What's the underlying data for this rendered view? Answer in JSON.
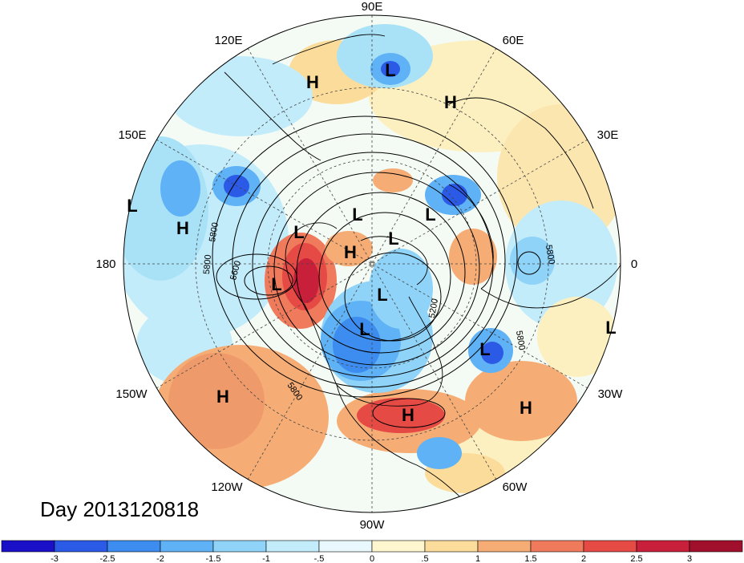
{
  "title": "Day 2013120818",
  "longitude_labels": [
    "90E",
    "60E",
    "30E",
    "0",
    "30W",
    "60W",
    "90W",
    "120W",
    "150W",
    "180",
    "150E",
    "120E"
  ],
  "systems": [
    {
      "type": "H",
      "id": "h1"
    },
    {
      "type": "L",
      "id": "l1"
    },
    {
      "type": "H",
      "id": "h2"
    },
    {
      "type": "L",
      "id": "l2"
    },
    {
      "type": "H",
      "id": "h3"
    },
    {
      "type": "L",
      "id": "l3"
    },
    {
      "type": "L",
      "id": "l4"
    },
    {
      "type": "L",
      "id": "l5"
    },
    {
      "type": "H",
      "id": "h4"
    },
    {
      "type": "L",
      "id": "l6"
    },
    {
      "type": "L",
      "id": "l7"
    },
    {
      "type": "L",
      "id": "l8"
    },
    {
      "type": "L",
      "id": "l9"
    },
    {
      "type": "L",
      "id": "l10"
    },
    {
      "type": "L",
      "id": "l11"
    },
    {
      "type": "H",
      "id": "h5"
    },
    {
      "type": "H",
      "id": "h6"
    },
    {
      "type": "H",
      "id": "h7"
    }
  ],
  "contour_labels": [
    "5800",
    "5600",
    "5800",
    "5200",
    "5800",
    "5800",
    "5800"
  ],
  "colorbar": {
    "ticks": [
      "-3",
      "-2.5",
      "-2",
      "-1.5",
      "-1",
      "-.5",
      "0",
      ".5",
      "1",
      "1.5",
      "2",
      "2.5",
      "3"
    ],
    "colors": [
      "#1a10c8",
      "#2b5ae6",
      "#3d8df0",
      "#5fb2f5",
      "#8fd3f8",
      "#c3ecfb",
      "#e8f8fc",
      "#fdf6cf",
      "#fbdc9a",
      "#f6ad75",
      "#ef7a5c",
      "#e64a45",
      "#c8203a",
      "#a0102c"
    ]
  },
  "colors": {
    "land_outline": "#000000",
    "contour": "#000000",
    "grid": "#444444"
  }
}
